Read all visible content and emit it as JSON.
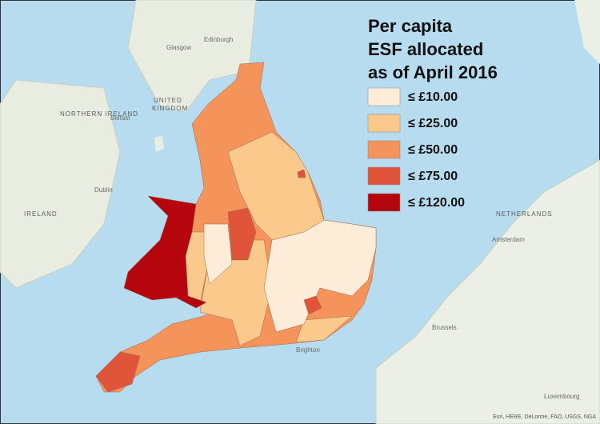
{
  "legend": {
    "title_lines": [
      "Per capita",
      "ESF allocated",
      "as of April 2016"
    ],
    "items": [
      {
        "label": "≤ £10.00",
        "color": "#fdecd8"
      },
      {
        "label": "≤ £25.00",
        "color": "#fbc98c"
      },
      {
        "label": "≤ £50.00",
        "color": "#f4935a"
      },
      {
        "label": "≤ £75.00",
        "color": "#e0553a"
      },
      {
        "label": "≤ £120.00",
        "color": "#b5060e"
      }
    ]
  },
  "map_labels": {
    "united": "UNITED",
    "kingdom": "KINGDOM",
    "ireland": "IRELAND",
    "northern_ireland": "NORTHERN IRELAND",
    "dublin": "Dublin",
    "belfast": "Belfast",
    "glasgow": "Glasgow",
    "edinburgh": "Edinburgh",
    "netherlands": "NETHERLANDS",
    "amsterdam": "Amsterdam",
    "brussels": "Brussels",
    "luxembourg": "Luxembourg",
    "brighton": "Brighton"
  },
  "attribution": "Esri, HERE, DeLorme, FAO, USGS, NGA"
}
